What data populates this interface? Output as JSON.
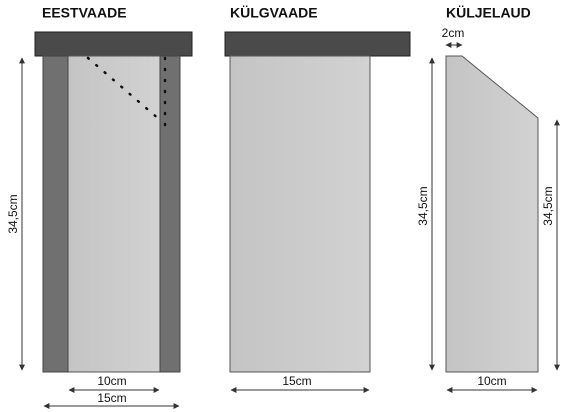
{
  "views": [
    {
      "title": "EESTVAADE",
      "height": "34,5cm",
      "inner_width": "10cm",
      "outer_width": "15cm"
    },
    {
      "title": "KÜLGVAADE",
      "width": "15cm"
    },
    {
      "title": "KÜLJELAUD",
      "top_width": "2cm",
      "left_height": "34,5cm",
      "right_height": "34,5cm",
      "width": "10cm"
    }
  ]
}
